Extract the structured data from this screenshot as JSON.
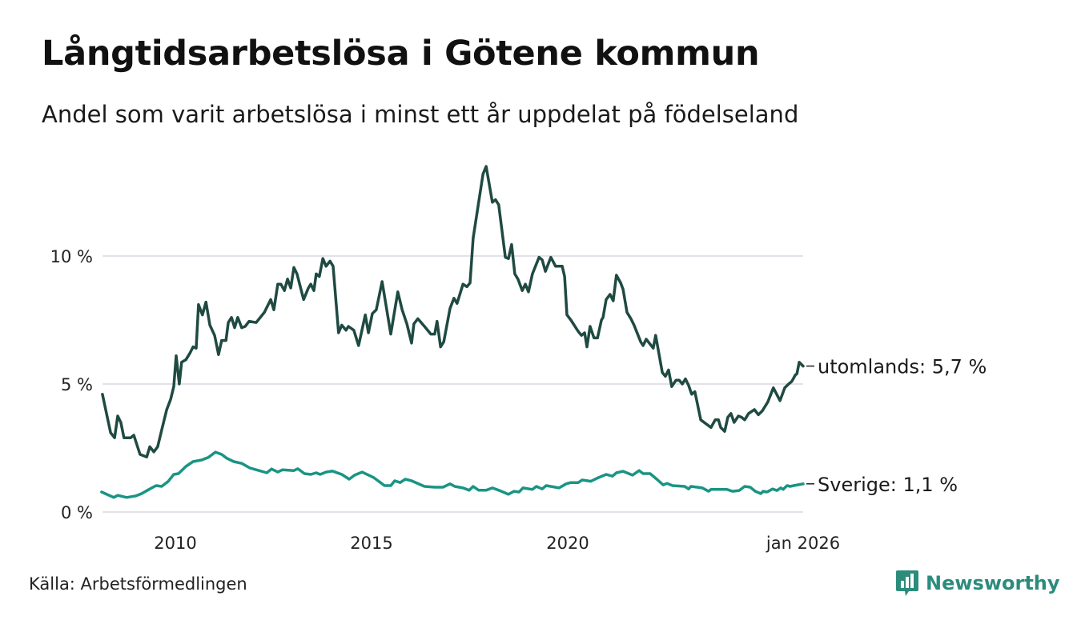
{
  "header": {
    "title": "Långtidsarbetslösa i Götene kommun",
    "subtitle": "Andel som varit arbetslösa i minst ett år uppdelat på födelseland"
  },
  "footer": {
    "source": "Källa: Arbetsförmedlingen",
    "brand": "Newsworthy"
  },
  "colors": {
    "utomlands": "#1f4a42",
    "sverige": "#1a9484",
    "grid": "#e2e2e8",
    "brand": "#2b8c7c"
  },
  "chart_data": {
    "type": "line",
    "title": "Långtidsarbetslösa i Götene kommun",
    "xlabel": "",
    "ylabel": "",
    "xlim": [
      2008.1,
      2026.0
    ],
    "ylim": [
      0,
      13.6
    ],
    "grid": true,
    "y_ticks": [
      {
        "value": 0,
        "label": "0 %"
      },
      {
        "value": 5,
        "label": "5 %"
      },
      {
        "value": 10,
        "label": "10 %"
      }
    ],
    "x_ticks": [
      {
        "value": 2010,
        "label": "2010"
      },
      {
        "value": 2015,
        "label": "2015"
      },
      {
        "value": 2020,
        "label": "2020"
      },
      {
        "value": 2026,
        "label": "jan 2026"
      }
    ],
    "series": [
      {
        "name": "utomlands",
        "end_label": "utomlands: 5,7 %",
        "points": [
          [
            2008.14,
            4.6
          ],
          [
            2008.35,
            3.1
          ],
          [
            2008.45,
            2.9
          ],
          [
            2008.53,
            3.75
          ],
          [
            2008.61,
            3.5
          ],
          [
            2008.69,
            2.9
          ],
          [
            2008.86,
            2.9
          ],
          [
            2008.94,
            3.0
          ],
          [
            2009.1,
            2.25
          ],
          [
            2009.27,
            2.15
          ],
          [
            2009.35,
            2.55
          ],
          [
            2009.45,
            2.35
          ],
          [
            2009.55,
            2.55
          ],
          [
            2009.65,
            3.2
          ],
          [
            2009.78,
            4.0
          ],
          [
            2009.88,
            4.4
          ],
          [
            2009.96,
            4.9
          ],
          [
            2010.02,
            6.1
          ],
          [
            2010.1,
            5.0
          ],
          [
            2010.16,
            5.85
          ],
          [
            2010.27,
            5.95
          ],
          [
            2010.37,
            6.2
          ],
          [
            2010.45,
            6.45
          ],
          [
            2010.53,
            6.4
          ],
          [
            2010.59,
            8.1
          ],
          [
            2010.69,
            7.7
          ],
          [
            2010.78,
            8.2
          ],
          [
            2010.88,
            7.3
          ],
          [
            2011.0,
            6.9
          ],
          [
            2011.1,
            6.15
          ],
          [
            2011.18,
            6.7
          ],
          [
            2011.29,
            6.7
          ],
          [
            2011.35,
            7.4
          ],
          [
            2011.43,
            7.6
          ],
          [
            2011.51,
            7.2
          ],
          [
            2011.59,
            7.6
          ],
          [
            2011.69,
            7.2
          ],
          [
            2011.78,
            7.25
          ],
          [
            2011.88,
            7.45
          ],
          [
            2012.06,
            7.4
          ],
          [
            2012.27,
            7.8
          ],
          [
            2012.43,
            8.3
          ],
          [
            2012.51,
            7.9
          ],
          [
            2012.61,
            8.9
          ],
          [
            2012.69,
            8.9
          ],
          [
            2012.78,
            8.65
          ],
          [
            2012.86,
            9.1
          ],
          [
            2012.94,
            8.75
          ],
          [
            2013.02,
            9.55
          ],
          [
            2013.1,
            9.3
          ],
          [
            2013.27,
            8.3
          ],
          [
            2013.39,
            8.75
          ],
          [
            2013.45,
            8.9
          ],
          [
            2013.53,
            8.65
          ],
          [
            2013.59,
            9.3
          ],
          [
            2013.67,
            9.2
          ],
          [
            2013.76,
            9.9
          ],
          [
            2013.84,
            9.6
          ],
          [
            2013.94,
            9.8
          ],
          [
            2014.02,
            9.6
          ],
          [
            2014.16,
            7.0
          ],
          [
            2014.24,
            7.3
          ],
          [
            2014.35,
            7.1
          ],
          [
            2014.41,
            7.25
          ],
          [
            2014.55,
            7.1
          ],
          [
            2014.67,
            6.5
          ],
          [
            2014.84,
            7.7
          ],
          [
            2014.92,
            7.0
          ],
          [
            2015.02,
            7.75
          ],
          [
            2015.12,
            7.9
          ],
          [
            2015.27,
            9.0
          ],
          [
            2015.49,
            6.95
          ],
          [
            2015.67,
            8.6
          ],
          [
            2015.78,
            7.9
          ],
          [
            2015.9,
            7.35
          ],
          [
            2016.02,
            6.6
          ],
          [
            2016.08,
            7.35
          ],
          [
            2016.18,
            7.55
          ],
          [
            2016.35,
            7.25
          ],
          [
            2016.51,
            6.95
          ],
          [
            2016.61,
            6.95
          ],
          [
            2016.67,
            7.45
          ],
          [
            2016.76,
            6.45
          ],
          [
            2016.84,
            6.65
          ],
          [
            2017.0,
            7.95
          ],
          [
            2017.1,
            8.35
          ],
          [
            2017.18,
            8.15
          ],
          [
            2017.33,
            8.9
          ],
          [
            2017.43,
            8.8
          ],
          [
            2017.51,
            8.95
          ],
          [
            2017.59,
            10.7
          ],
          [
            2017.71,
            11.9
          ],
          [
            2017.84,
            13.2
          ],
          [
            2017.92,
            13.5
          ],
          [
            2018.08,
            12.1
          ],
          [
            2018.16,
            12.2
          ],
          [
            2018.24,
            12.0
          ],
          [
            2018.41,
            9.95
          ],
          [
            2018.49,
            9.9
          ],
          [
            2018.57,
            10.45
          ],
          [
            2018.65,
            9.3
          ],
          [
            2018.73,
            9.1
          ],
          [
            2018.84,
            8.65
          ],
          [
            2018.92,
            8.9
          ],
          [
            2019.0,
            8.6
          ],
          [
            2019.1,
            9.3
          ],
          [
            2019.27,
            9.95
          ],
          [
            2019.35,
            9.85
          ],
          [
            2019.43,
            9.4
          ],
          [
            2019.57,
            9.95
          ],
          [
            2019.69,
            9.6
          ],
          [
            2019.86,
            9.6
          ],
          [
            2019.92,
            9.2
          ],
          [
            2019.98,
            7.7
          ],
          [
            2020.08,
            7.5
          ],
          [
            2020.27,
            7.05
          ],
          [
            2020.35,
            6.9
          ],
          [
            2020.43,
            7.0
          ],
          [
            2020.49,
            6.45
          ],
          [
            2020.57,
            7.25
          ],
          [
            2020.67,
            6.8
          ],
          [
            2020.76,
            6.8
          ],
          [
            2020.86,
            7.5
          ],
          [
            2020.9,
            7.6
          ],
          [
            2020.98,
            8.3
          ],
          [
            2021.08,
            8.5
          ],
          [
            2021.16,
            8.25
          ],
          [
            2021.24,
            9.25
          ],
          [
            2021.35,
            8.95
          ],
          [
            2021.41,
            8.7
          ],
          [
            2021.51,
            7.8
          ],
          [
            2021.61,
            7.55
          ],
          [
            2021.69,
            7.3
          ],
          [
            2021.86,
            6.65
          ],
          [
            2021.92,
            6.5
          ],
          [
            2022.0,
            6.75
          ],
          [
            2022.18,
            6.4
          ],
          [
            2022.24,
            6.9
          ],
          [
            2022.41,
            5.45
          ],
          [
            2022.49,
            5.3
          ],
          [
            2022.57,
            5.55
          ],
          [
            2022.65,
            4.9
          ],
          [
            2022.76,
            5.15
          ],
          [
            2022.84,
            5.15
          ],
          [
            2022.92,
            5.0
          ],
          [
            2023.0,
            5.2
          ],
          [
            2023.08,
            4.95
          ],
          [
            2023.16,
            4.6
          ],
          [
            2023.24,
            4.7
          ],
          [
            2023.39,
            3.6
          ],
          [
            2023.65,
            3.3
          ],
          [
            2023.76,
            3.6
          ],
          [
            2023.84,
            3.6
          ],
          [
            2023.9,
            3.3
          ],
          [
            2024.0,
            3.15
          ],
          [
            2024.08,
            3.7
          ],
          [
            2024.16,
            3.85
          ],
          [
            2024.24,
            3.5
          ],
          [
            2024.35,
            3.75
          ],
          [
            2024.43,
            3.7
          ],
          [
            2024.51,
            3.6
          ],
          [
            2024.61,
            3.85
          ],
          [
            2024.76,
            4.0
          ],
          [
            2024.86,
            3.8
          ],
          [
            2024.96,
            3.95
          ],
          [
            2025.1,
            4.3
          ],
          [
            2025.24,
            4.85
          ],
          [
            2025.41,
            4.35
          ],
          [
            2025.53,
            4.85
          ],
          [
            2025.63,
            5.0
          ],
          [
            2025.71,
            5.1
          ],
          [
            2025.8,
            5.35
          ],
          [
            2025.84,
            5.4
          ],
          [
            2025.9,
            5.85
          ],
          [
            2026.0,
            5.7
          ]
        ]
      },
      {
        "name": "Sverige",
        "end_label": "Sverige: 1,1 %",
        "points": [
          [
            2008.12,
            0.78
          ],
          [
            2008.43,
            0.57
          ],
          [
            2008.53,
            0.65
          ],
          [
            2008.76,
            0.57
          ],
          [
            2009.0,
            0.63
          ],
          [
            2009.14,
            0.72
          ],
          [
            2009.35,
            0.9
          ],
          [
            2009.51,
            1.03
          ],
          [
            2009.65,
            1.0
          ],
          [
            2009.82,
            1.2
          ],
          [
            2009.96,
            1.47
          ],
          [
            2010.08,
            1.5
          ],
          [
            2010.27,
            1.78
          ],
          [
            2010.45,
            1.97
          ],
          [
            2010.67,
            2.03
          ],
          [
            2010.84,
            2.13
          ],
          [
            2011.02,
            2.34
          ],
          [
            2011.18,
            2.25
          ],
          [
            2011.31,
            2.1
          ],
          [
            2011.49,
            1.97
          ],
          [
            2011.69,
            1.9
          ],
          [
            2011.9,
            1.72
          ],
          [
            2012.06,
            1.65
          ],
          [
            2012.33,
            1.53
          ],
          [
            2012.45,
            1.68
          ],
          [
            2012.61,
            1.56
          ],
          [
            2012.73,
            1.65
          ],
          [
            2013.02,
            1.62
          ],
          [
            2013.12,
            1.69
          ],
          [
            2013.29,
            1.5
          ],
          [
            2013.45,
            1.47
          ],
          [
            2013.59,
            1.53
          ],
          [
            2013.69,
            1.47
          ],
          [
            2013.84,
            1.56
          ],
          [
            2014.0,
            1.6
          ],
          [
            2014.24,
            1.47
          ],
          [
            2014.43,
            1.28
          ],
          [
            2014.57,
            1.44
          ],
          [
            2014.76,
            1.56
          ],
          [
            2015.06,
            1.34
          ],
          [
            2015.33,
            1.03
          ],
          [
            2015.49,
            1.03
          ],
          [
            2015.59,
            1.22
          ],
          [
            2015.73,
            1.15
          ],
          [
            2015.86,
            1.28
          ],
          [
            2016.02,
            1.22
          ],
          [
            2016.35,
            1.0
          ],
          [
            2016.61,
            0.97
          ],
          [
            2016.82,
            0.97
          ],
          [
            2017.0,
            1.1
          ],
          [
            2017.12,
            1.0
          ],
          [
            2017.33,
            0.94
          ],
          [
            2017.49,
            0.85
          ],
          [
            2017.59,
            1.0
          ],
          [
            2017.73,
            0.85
          ],
          [
            2017.92,
            0.85
          ],
          [
            2018.08,
            0.94
          ],
          [
            2018.24,
            0.85
          ],
          [
            2018.49,
            0.69
          ],
          [
            2018.63,
            0.81
          ],
          [
            2018.76,
            0.78
          ],
          [
            2018.86,
            0.94
          ],
          [
            2019.1,
            0.88
          ],
          [
            2019.2,
            1.0
          ],
          [
            2019.35,
            0.9
          ],
          [
            2019.45,
            1.03
          ],
          [
            2019.78,
            0.94
          ],
          [
            2019.96,
            1.1
          ],
          [
            2020.08,
            1.15
          ],
          [
            2020.27,
            1.15
          ],
          [
            2020.37,
            1.25
          ],
          [
            2020.59,
            1.2
          ],
          [
            2020.78,
            1.34
          ],
          [
            2020.98,
            1.47
          ],
          [
            2021.14,
            1.4
          ],
          [
            2021.24,
            1.53
          ],
          [
            2021.41,
            1.59
          ],
          [
            2021.65,
            1.44
          ],
          [
            2021.82,
            1.62
          ],
          [
            2021.92,
            1.5
          ],
          [
            2022.1,
            1.5
          ],
          [
            2022.27,
            1.28
          ],
          [
            2022.43,
            1.06
          ],
          [
            2022.53,
            1.12
          ],
          [
            2022.67,
            1.03
          ],
          [
            2022.98,
            1.0
          ],
          [
            2023.08,
            0.9
          ],
          [
            2023.14,
            1.0
          ],
          [
            2023.43,
            0.94
          ],
          [
            2023.59,
            0.81
          ],
          [
            2023.65,
            0.88
          ],
          [
            2024.06,
            0.88
          ],
          [
            2024.2,
            0.81
          ],
          [
            2024.37,
            0.84
          ],
          [
            2024.51,
            1.0
          ],
          [
            2024.65,
            0.97
          ],
          [
            2024.78,
            0.81
          ],
          [
            2024.92,
            0.72
          ],
          [
            2024.98,
            0.81
          ],
          [
            2025.08,
            0.78
          ],
          [
            2025.22,
            0.9
          ],
          [
            2025.33,
            0.84
          ],
          [
            2025.43,
            0.94
          ],
          [
            2025.49,
            0.88
          ],
          [
            2025.59,
            1.03
          ],
          [
            2025.67,
            1.0
          ],
          [
            2025.76,
            1.03
          ],
          [
            2025.86,
            1.06
          ],
          [
            2026.0,
            1.1
          ]
        ]
      }
    ]
  }
}
